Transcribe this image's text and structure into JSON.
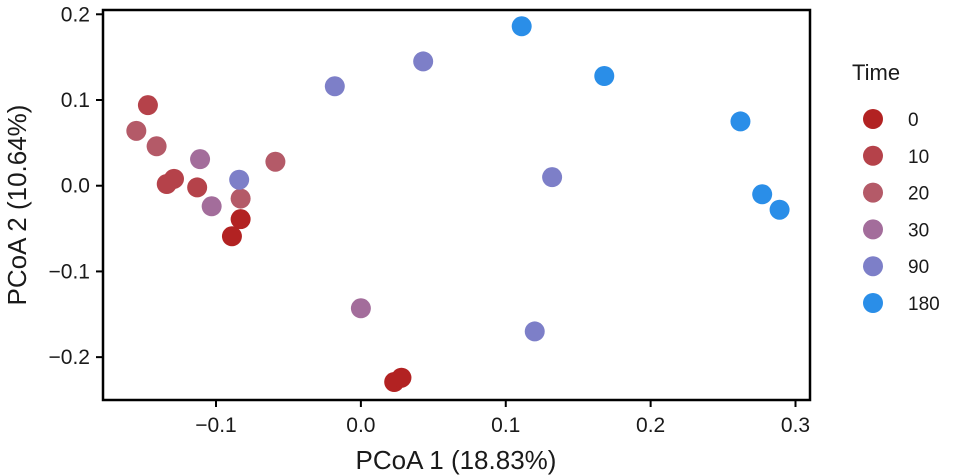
{
  "chart_data": {
    "type": "scatter",
    "xlabel": "PCoA 1 (18.83%)",
    "ylabel": "PCoA 2 (10.64%)",
    "xlim": [
      -0.178,
      0.31
    ],
    "ylim": [
      -0.25,
      0.205
    ],
    "xticks": [
      -0.1,
      0.0,
      0.1,
      0.2,
      0.3
    ],
    "xtick_labels": [
      "−0.1",
      "0.0",
      "0.1",
      "0.2",
      "0.3"
    ],
    "yticks": [
      0.2,
      0.1,
      0.0,
      -0.1,
      -0.2
    ],
    "ytick_labels": [
      "0.2",
      "0.1",
      "0.0",
      "−0.1",
      "−0.2"
    ],
    "grid": false,
    "legend": {
      "title": "Time",
      "position": "right"
    },
    "series": [
      {
        "name": "0",
        "color": "#b22222",
        "points": [
          {
            "x": -0.089,
            "y": -0.059
          },
          {
            "x": -0.083,
            "y": -0.039
          },
          {
            "x": 0.023,
            "y": -0.229
          },
          {
            "x": 0.028,
            "y": -0.224
          }
        ]
      },
      {
        "name": "10",
        "color": "#b5424a",
        "points": [
          {
            "x": -0.147,
            "y": 0.094
          },
          {
            "x": -0.129,
            "y": 0.008
          },
          {
            "x": -0.134,
            "y": 0.002
          },
          {
            "x": -0.113,
            "y": -0.002
          }
        ]
      },
      {
        "name": "20",
        "color": "#b45a68",
        "points": [
          {
            "x": -0.155,
            "y": 0.064
          },
          {
            "x": -0.141,
            "y": 0.046
          },
          {
            "x": -0.083,
            "y": -0.015
          },
          {
            "x": -0.059,
            "y": 0.028
          }
        ]
      },
      {
        "name": "30",
        "color": "#a36d9b",
        "points": [
          {
            "x": -0.111,
            "y": 0.031
          },
          {
            "x": -0.103,
            "y": -0.024
          },
          {
            "x": 0.0,
            "y": -0.143
          }
        ]
      },
      {
        "name": "90",
        "color": "#7d7fc8",
        "points": [
          {
            "x": -0.084,
            "y": 0.007
          },
          {
            "x": -0.018,
            "y": 0.116
          },
          {
            "x": 0.043,
            "y": 0.145
          },
          {
            "x": 0.132,
            "y": 0.01
          },
          {
            "x": 0.12,
            "y": -0.17
          }
        ]
      },
      {
        "name": "180",
        "color": "#2a8ee8",
        "points": [
          {
            "x": 0.111,
            "y": 0.186
          },
          {
            "x": 0.168,
            "y": 0.128
          },
          {
            "x": 0.262,
            "y": 0.075
          },
          {
            "x": 0.277,
            "y": -0.01
          },
          {
            "x": 0.289,
            "y": -0.028
          }
        ]
      }
    ]
  }
}
